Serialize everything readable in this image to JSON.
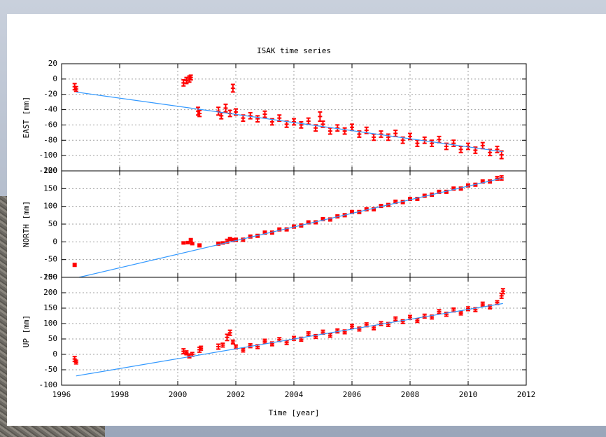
{
  "title": "ISAK time series",
  "xlabel": "Time [year]",
  "chart_data": [
    {
      "type": "scatter",
      "ylabel": "EAST [mm]",
      "xlim": [
        1996,
        2012
      ],
      "ylim": [
        -120,
        20
      ],
      "xticks": [
        1996,
        1998,
        2000,
        2002,
        2004,
        2006,
        2008,
        2010,
        2012
      ],
      "yticks": [
        -120,
        -100,
        -80,
        -60,
        -40,
        -20,
        0,
        20
      ],
      "grid": true,
      "series": [
        {
          "type": "errorbar",
          "color": "#ff0000",
          "x": [
            1996.45,
            1996.5,
            2000.2,
            2000.3,
            2000.4,
            2000.45,
            2000.7,
            2000.75,
            2001.4,
            2001.5,
            2001.65,
            2001.8,
            2001.9,
            2004.9,
            2002.0,
            2002.25,
            2002.5,
            2002.75,
            2003.0,
            2003.25,
            2003.5,
            2003.75,
            2004.0,
            2004.25,
            2004.5,
            2004.75,
            2005.0,
            2005.25,
            2005.5,
            2005.75,
            2006.0,
            2006.25,
            2006.5,
            2006.75,
            2007.0,
            2007.25,
            2007.5,
            2007.75,
            2008.0,
            2008.25,
            2008.5,
            2008.75,
            2009.0,
            2009.25,
            2009.5,
            2009.75,
            2010.0,
            2010.25,
            2010.5,
            2010.75,
            2011.0,
            2011.15
          ],
          "values": [
            -10,
            -13,
            -5,
            -2,
            0,
            2,
            -42,
            -45,
            -42,
            -48,
            -38,
            -45,
            -12,
            -49,
            -43,
            -51,
            -48,
            -52,
            -46,
            -56,
            -51,
            -59,
            -56,
            -60,
            -55,
            -64,
            -59,
            -68,
            -64,
            -68,
            -63,
            -72,
            -67,
            -76,
            -72,
            -76,
            -71,
            -80,
            -75,
            -84,
            -80,
            -84,
            -79,
            -88,
            -84,
            -92,
            -88,
            -93,
            -87,
            -96,
            -92,
            -99
          ],
          "errors": [
            4,
            3,
            4,
            4,
            4,
            3,
            5,
            4,
            5,
            4,
            5,
            4,
            5,
            6,
            4,
            4,
            4,
            4,
            4,
            4,
            4,
            4,
            4,
            4,
            4,
            4,
            4,
            4,
            4,
            4,
            4,
            4,
            4,
            4,
            4,
            4,
            4,
            4,
            4,
            4,
            4,
            4,
            4,
            4,
            4,
            4,
            4,
            4,
            4,
            4,
            4,
            5
          ]
        },
        {
          "type": "line",
          "color": "#3399ff",
          "x": [
            1996.5,
            2011.2
          ],
          "values": [
            -17,
            -95
          ]
        }
      ]
    },
    {
      "type": "scatter",
      "ylabel": "NORTH [mm]",
      "xlim": [
        1996,
        2012
      ],
      "ylim": [
        -100,
        200
      ],
      "xticks": [
        1996,
        1998,
        2000,
        2002,
        2004,
        2006,
        2008,
        2010,
        2012
      ],
      "yticks": [
        -100,
        -50,
        0,
        50,
        100,
        150,
        200
      ],
      "grid": true,
      "series": [
        {
          "type": "errorbar",
          "color": "#ff0000",
          "x": [
            1996.45,
            2000.2,
            2000.35,
            2000.45,
            2000.5,
            2000.75,
            2001.4,
            2001.55,
            2001.7,
            2001.8,
            2001.9,
            2002.0,
            2002.25,
            2002.5,
            2002.75,
            2003.0,
            2003.25,
            2003.5,
            2003.75,
            2004.0,
            2004.25,
            2004.5,
            2004.75,
            2005.0,
            2005.25,
            2005.5,
            2005.75,
            2006.0,
            2006.25,
            2006.5,
            2006.75,
            2007.0,
            2007.25,
            2007.5,
            2007.75,
            2008.0,
            2008.25,
            2008.5,
            2008.75,
            2009.0,
            2009.25,
            2009.5,
            2009.75,
            2010.0,
            2010.25,
            2010.5,
            2010.75,
            2011.0,
            2011.15
          ],
          "values": [
            -65,
            -3,
            -2,
            5,
            -5,
            -10,
            -5,
            -3,
            2,
            8,
            5,
            6,
            6,
            15,
            17,
            26,
            26,
            35,
            35,
            43,
            46,
            55,
            55,
            64,
            63,
            72,
            75,
            84,
            84,
            92,
            92,
            101,
            104,
            113,
            112,
            121,
            121,
            130,
            133,
            141,
            141,
            150,
            150,
            159,
            161,
            170,
            170,
            179,
            180
          ],
          "errors": [
            4,
            3,
            3,
            4,
            3,
            4,
            4,
            3,
            5,
            4,
            4,
            4,
            4,
            4,
            4,
            4,
            4,
            4,
            4,
            4,
            4,
            4,
            4,
            4,
            4,
            4,
            4,
            4,
            4,
            4,
            4,
            4,
            4,
            4,
            4,
            4,
            4,
            4,
            4,
            4,
            4,
            4,
            4,
            4,
            4,
            4,
            4,
            5,
            6
          ]
        },
        {
          "type": "line",
          "color": "#3399ff",
          "x": [
            1996.6,
            2011.2
          ],
          "values": [
            -100,
            180
          ]
        }
      ]
    },
    {
      "type": "scatter",
      "ylabel": "UP [mm]",
      "xlim": [
        1996,
        2012
      ],
      "ylim": [
        -100,
        250
      ],
      "xticks": [
        1996,
        1998,
        2000,
        2002,
        2004,
        2006,
        2008,
        2010,
        2012
      ],
      "yticks": [
        -100,
        -50,
        0,
        50,
        100,
        150,
        200,
        250
      ],
      "grid": true,
      "series": [
        {
          "type": "errorbar",
          "color": "#ff0000",
          "x": [
            1996.45,
            1996.5,
            2000.2,
            2000.3,
            2000.4,
            2000.5,
            2000.75,
            2000.8,
            2001.4,
            2001.55,
            2001.7,
            2001.8,
            2001.9,
            2002.0,
            2002.25,
            2002.5,
            2002.75,
            2003.0,
            2003.25,
            2003.5,
            2003.75,
            2004.0,
            2004.25,
            2004.5,
            2004.75,
            2005.0,
            2005.25,
            2005.5,
            2005.75,
            2006.0,
            2006.25,
            2006.5,
            2006.75,
            2007.0,
            2007.25,
            2007.5,
            2007.75,
            2008.0,
            2008.25,
            2008.5,
            2008.75,
            2009.0,
            2009.25,
            2009.5,
            2009.75,
            2010.0,
            2010.25,
            2010.5,
            2010.75,
            2011.0,
            2011.15,
            2011.2
          ],
          "values": [
            -15,
            -25,
            10,
            5,
            -5,
            0,
            15,
            20,
            25,
            30,
            55,
            70,
            40,
            24,
            14,
            28,
            25,
            43,
            34,
            48,
            38,
            52,
            49,
            67,
            58,
            72,
            62,
            76,
            73,
            91,
            82,
            96,
            86,
            100,
            97,
            115,
            106,
            120,
            110,
            124,
            121,
            139,
            130,
            144,
            134,
            148,
            145,
            163,
            154,
            168,
            190,
            205
          ],
          "errors": [
            8,
            6,
            8,
            6,
            6,
            6,
            8,
            6,
            8,
            6,
            10,
            8,
            6,
            6,
            6,
            6,
            6,
            6,
            6,
            6,
            6,
            6,
            6,
            6,
            6,
            6,
            6,
            6,
            6,
            6,
            6,
            6,
            6,
            6,
            6,
            6,
            6,
            6,
            6,
            6,
            6,
            6,
            6,
            6,
            6,
            6,
            6,
            6,
            6,
            6,
            8,
            8
          ]
        },
        {
          "type": "line",
          "color": "#3399ff",
          "x": [
            1996.5,
            2011.2
          ],
          "values": [
            -70,
            165
          ]
        }
      ]
    }
  ]
}
